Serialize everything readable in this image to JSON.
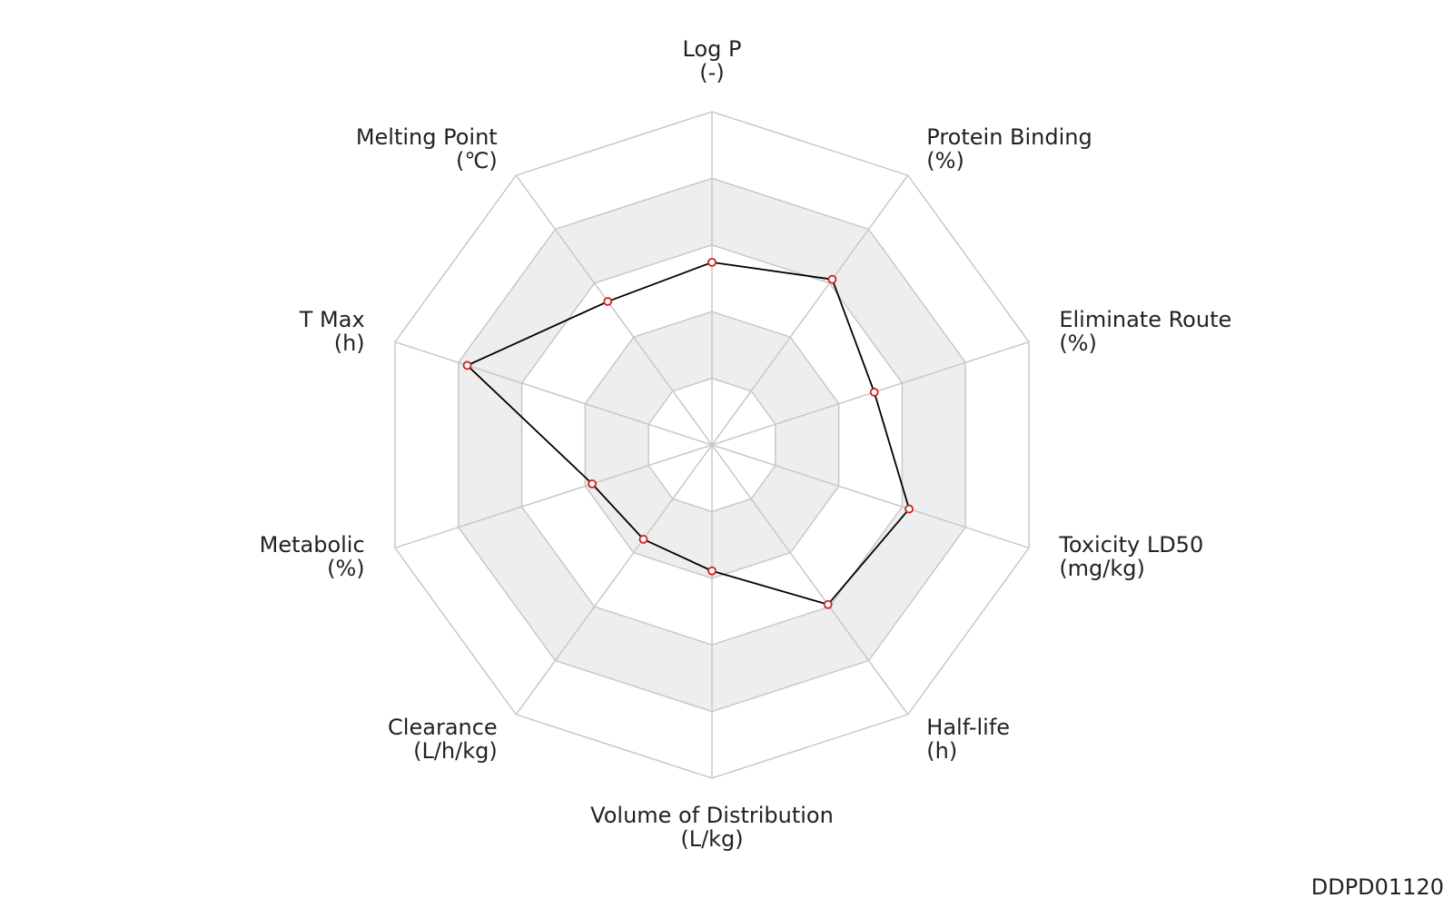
{
  "chart_data": {
    "type": "radar",
    "categories": [
      "Log P",
      "Protein Binding",
      "Eliminate Route",
      "Toxicity LD50",
      "Half-life",
      "Volume of Distribution",
      "Clearance",
      "Metabolic",
      "T Max",
      "Melting Point"
    ],
    "units": [
      "(-)",
      "(%)",
      "(%)",
      "(mg/kg)",
      "(h)",
      "(L/kg)",
      "(L/h/kg)",
      "(%)",
      "(h)",
      "(℃)"
    ],
    "values": [
      2.74,
      3.07,
      2.56,
      3.11,
      2.96,
      1.89,
      1.75,
      1.89,
      3.86,
      2.66
    ],
    "rlim": [
      0,
      5
    ],
    "rticks": [
      1,
      2,
      3,
      4,
      5
    ],
    "color": "#000000",
    "marker_color": "#cc2222",
    "band_colors": [
      "#ffffff",
      "#eeeeee"
    ]
  },
  "footer": "DDPD01120"
}
